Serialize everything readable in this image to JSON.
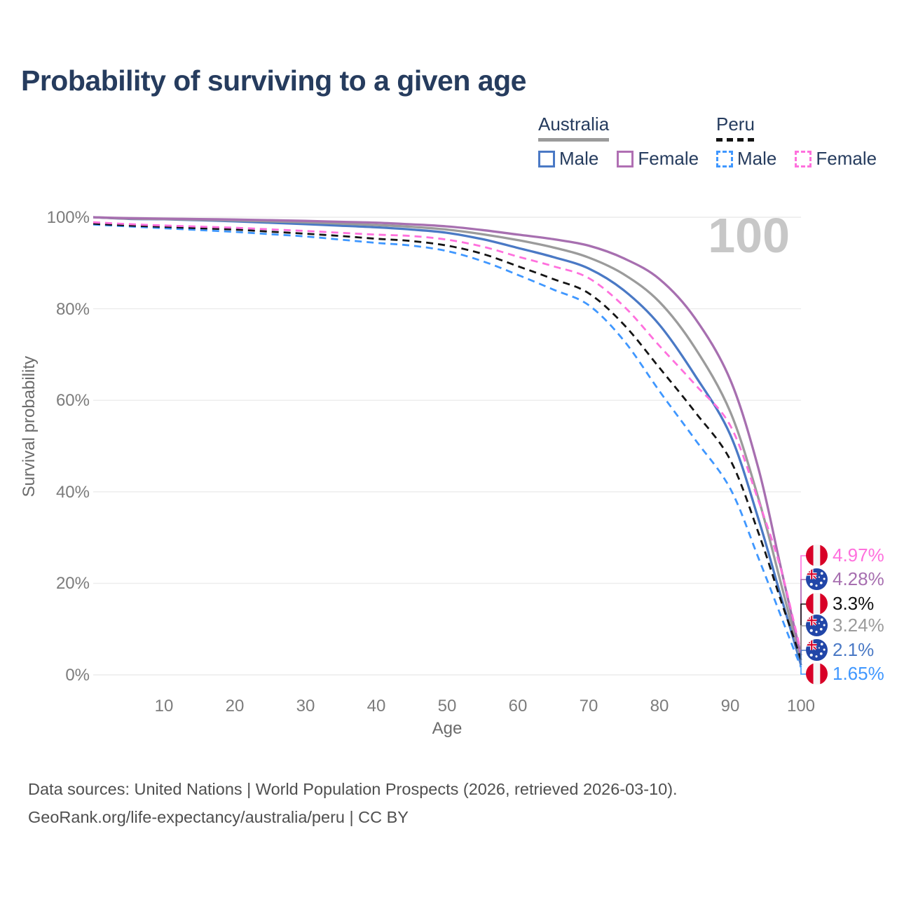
{
  "page": {
    "title": "Probability of surviving to a given age"
  },
  "legend": {
    "groups": [
      {
        "label": "Australia",
        "underline_style": "solid",
        "underline_color": "#9b9b9b",
        "items": [
          {
            "label": "Male",
            "color": "#4a79c5",
            "dashed": false
          },
          {
            "label": "Female",
            "color": "#b06fb3",
            "dashed": false
          }
        ]
      },
      {
        "label": "Peru",
        "underline_style": "dashed",
        "underline_color": "#141414",
        "items": [
          {
            "label": "Male",
            "color": "#3f97ff",
            "dashed": true
          },
          {
            "label": "Female",
            "color": "#ff70dd",
            "dashed": true
          }
        ]
      }
    ]
  },
  "chart_data": {
    "type": "line",
    "title": "Probability of surviving to a given age",
    "xlabel": "Age",
    "ylabel": "Survival probability",
    "xlim": [
      0,
      100
    ],
    "ylim": [
      0,
      100
    ],
    "x_ticks": [
      10,
      20,
      30,
      40,
      50,
      60,
      70,
      80,
      90,
      100
    ],
    "y_ticks": [
      {
        "value": 0,
        "label": "0%"
      },
      {
        "value": 20,
        "label": "20%"
      },
      {
        "value": 40,
        "label": "40%"
      },
      {
        "value": 60,
        "label": "60%"
      },
      {
        "value": 80,
        "label": "80%"
      },
      {
        "value": 100,
        "label": "100%"
      }
    ],
    "grid": "horizontal",
    "legend_position": "top-right",
    "watermark": "100",
    "ages": [
      0,
      5,
      10,
      15,
      20,
      25,
      30,
      35,
      40,
      45,
      50,
      55,
      60,
      65,
      70,
      75,
      80,
      85,
      90,
      94,
      97,
      99,
      100
    ],
    "series": [
      {
        "name": "Australia Male",
        "country": "australia",
        "sex": "male",
        "color": "#4a79c5",
        "dashed": false,
        "values": [
          100,
          99.65,
          99.55,
          99.35,
          99.1,
          98.8,
          98.5,
          98.15,
          97.8,
          97.3,
          96.6,
          95.2,
          93.3,
          91.3,
          88.8,
          84.0,
          76.5,
          65.5,
          52.5,
          34,
          18,
          7.5,
          2.1
        ]
      },
      {
        "name": "Australia Both sexes",
        "country": "australia",
        "sex": "both",
        "color": "#9b9b9b",
        "dashed": false,
        "values": [
          100,
          99.7,
          99.6,
          99.45,
          99.3,
          99.1,
          98.9,
          98.6,
          98.3,
          97.9,
          97.3,
          96.3,
          95.0,
          93.4,
          91.2,
          87.5,
          81.5,
          71.5,
          57.5,
          38.5,
          21,
          9,
          3.24
        ]
      },
      {
        "name": "Australia Female",
        "country": "australia",
        "sex": "female",
        "color": "#a76fb0",
        "dashed": false,
        "values": [
          100,
          99.8,
          99.7,
          99.6,
          99.5,
          99.35,
          99.2,
          99.0,
          98.8,
          98.45,
          98.0,
          97.2,
          96.2,
          95.2,
          93.8,
          91.0,
          86.5,
          78.0,
          64.5,
          45,
          24.5,
          10.8,
          4.28
        ]
      },
      {
        "name": "Peru Male",
        "country": "peru",
        "sex": "male",
        "color": "#3f97ff",
        "dashed": true,
        "values": [
          98.4,
          98.0,
          97.6,
          97.2,
          96.8,
          96.3,
          95.8,
          95.1,
          94.4,
          93.8,
          92.6,
          90.4,
          87.4,
          84.2,
          80.8,
          73.0,
          62.0,
          51.5,
          40.7,
          25.5,
          13.5,
          5.5,
          1.65
        ]
      },
      {
        "name": "Peru Both sexes",
        "country": "peru",
        "sex": "both",
        "color": "#141414",
        "dashed": true,
        "values": [
          98.6,
          98.2,
          97.9,
          97.6,
          97.3,
          96.85,
          96.4,
          95.9,
          95.3,
          94.8,
          93.8,
          92.0,
          89.3,
          86.5,
          83.4,
          76.5,
          67.1,
          57.5,
          47.0,
          31,
          17,
          8,
          3.3
        ]
      },
      {
        "name": "Peru Female",
        "country": "peru",
        "sex": "female",
        "color": "#ff70dd",
        "dashed": true,
        "values": [
          98.9,
          98.5,
          98.2,
          97.95,
          97.7,
          97.35,
          97.0,
          96.6,
          96.2,
          95.9,
          95.1,
          93.6,
          91.4,
          89.3,
          86.7,
          80.5,
          71.9,
          63.5,
          54.5,
          38,
          24,
          11.5,
          4.97
        ]
      }
    ],
    "end_labels": [
      {
        "text": "4.97%",
        "value": 4.97,
        "country": "peru",
        "color": "#ff70dd"
      },
      {
        "text": "4.28%",
        "value": 4.28,
        "country": "australia",
        "color": "#a76fb0"
      },
      {
        "text": "3.3%",
        "value": 3.3,
        "country": "peru",
        "color": "#111111"
      },
      {
        "text": "3.24%",
        "value": 3.24,
        "country": "australia",
        "color": "#9b9b9b"
      },
      {
        "text": "2.1%",
        "value": 2.1,
        "country": "australia",
        "color": "#4a79c5"
      },
      {
        "text": "1.65%",
        "value": 1.65,
        "country": "peru",
        "color": "#3f97ff"
      }
    ]
  },
  "footer": {
    "line1": "Data sources: United Nations | World Population Prospects (2026, retrieved 2026-03-10).",
    "line2": "GeoRank.org/life-expectancy/australia/peru | CC BY"
  }
}
